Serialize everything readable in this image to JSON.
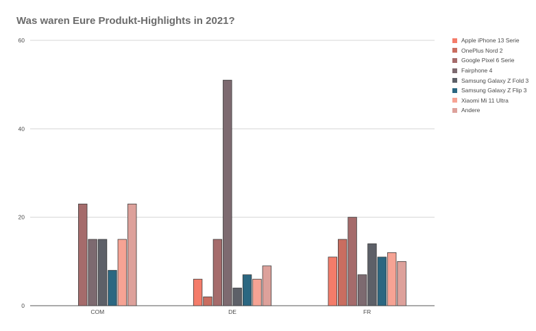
{
  "chart_data": {
    "type": "bar",
    "title": "Was waren Eure Produkt-Highlights in 2021?",
    "xlabel": "",
    "ylabel": "",
    "ylim": [
      0,
      60
    ],
    "yticks": [
      0,
      20,
      40,
      60
    ],
    "grid": true,
    "legend_position": "right",
    "categories": [
      "COM",
      "DE",
      "FR"
    ],
    "series": [
      {
        "name": "Apple iPhone 13 Serie",
        "color": "#f47c6a",
        "values": [
          0,
          6,
          11
        ]
      },
      {
        "name": "OnePlus Nord 2",
        "color": "#c96d60",
        "values": [
          0,
          2,
          15
        ]
      },
      {
        "name": "Google Pixel 6 Serie",
        "color": "#a56b6b",
        "values": [
          23,
          15,
          20
        ]
      },
      {
        "name": "Fairphone 4",
        "color": "#7d6a70",
        "values": [
          15,
          51,
          7
        ]
      },
      {
        "name": "Samsung Galaxy Z Fold 3",
        "color": "#5d6068",
        "values": [
          15,
          4,
          14
        ]
      },
      {
        "name": "Samsung Galaxy Z Flip 3",
        "color": "#2b6781",
        "values": [
          8,
          7,
          11
        ]
      },
      {
        "name": "Xiaomi Mi 11 Ultra",
        "color": "#f6a394",
        "values": [
          15,
          6,
          12
        ]
      },
      {
        "name": "Andere",
        "color": "#dda19b",
        "values": [
          23,
          9,
          10
        ]
      }
    ]
  }
}
